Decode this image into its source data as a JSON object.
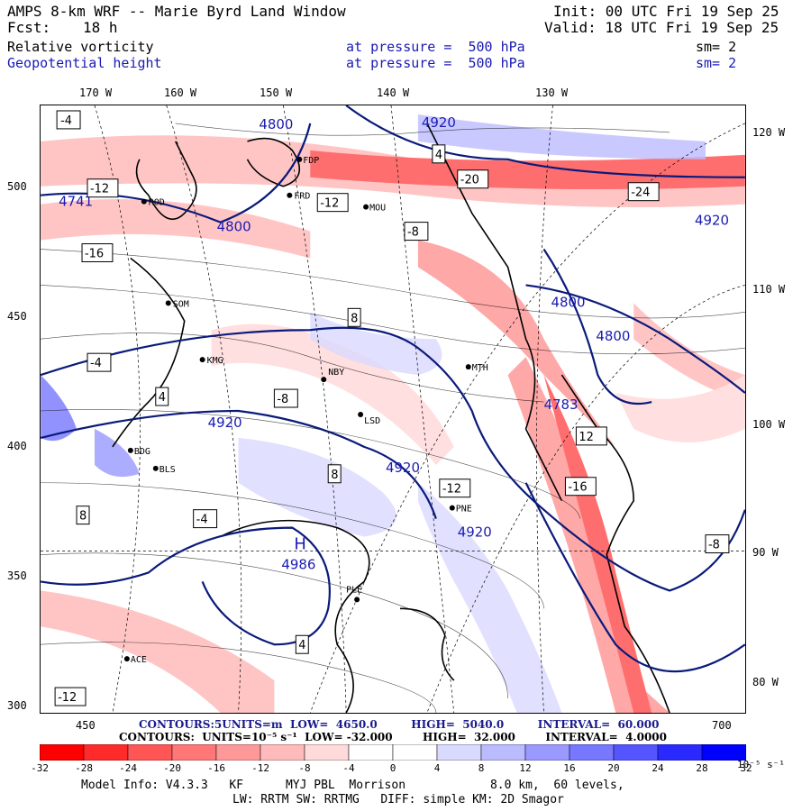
{
  "header": {
    "title": "AMPS 8-km WRF -- Marie Byrd Land Window",
    "init": "Init: 00 UTC Fri 19 Sep 25",
    "fcst_label": "Fcst:",
    "fcst_value": "18 h",
    "valid": "Valid: 18 UTC Fri 19 Sep 25"
  },
  "fields": [
    {
      "name": "Relative vorticity",
      "level": "at pressure =  500 hPa",
      "sm": "sm= 2",
      "color": "#000000"
    },
    {
      "name": "Geopotential height",
      "level": "at pressure =  500 hPa",
      "sm": "sm= 2",
      "color": "#1a1ab4"
    }
  ],
  "axes": {
    "lon_top": [
      "170 W",
      "160 W",
      "150 W",
      "140 W",
      "130 W"
    ],
    "lat_right": [
      "120 W",
      "110 W",
      "100 W",
      "90 W",
      "80 W"
    ],
    "y_left": [
      "500",
      "450",
      "400",
      "350",
      "300"
    ],
    "x_bottom": [
      "450",
      "700"
    ]
  },
  "stations": [
    "FDP",
    "FRD",
    "MOU",
    "ROD",
    "SOM",
    "KMG",
    "NBY",
    "MTH",
    "LSD",
    "BDG",
    "BLS",
    "PNE",
    "PLE",
    "ACE"
  ],
  "height_labels": [
    "4800",
    "4920",
    "4741",
    "4800",
    "4920",
    "4800",
    "4800",
    "4783",
    "4920",
    "4920",
    "4920",
    "4986",
    "H"
  ],
  "vort_labels": [
    "-4",
    "4",
    "-12",
    "-8",
    "-16",
    "-20",
    "-24",
    "-12",
    "8",
    "12",
    "-8",
    "-4",
    "4",
    "8",
    "-16",
    "-12",
    "-8",
    "4",
    "-4",
    "8",
    "-12"
  ],
  "contour_info": {
    "height": "CONTOURS:5UNITS=m  LOW=  4650.0         HIGH=  5040.0         INTERVAL=  60.000",
    "vort": "CONTOURS:  UNITS=10⁻⁵ s⁻¹  LOW= -32.000        HIGH=  32.000        INTERVAL=  4.0000"
  },
  "colorbar": {
    "labels": [
      "-32",
      "-28",
      "-24",
      "-20",
      "-16",
      "-12",
      "-8",
      "-4",
      "0",
      "4",
      "8",
      "12",
      "16",
      "20",
      "24",
      "28",
      "32"
    ],
    "unit": "10⁻⁵ s⁻¹",
    "colors": [
      "#ff0000",
      "#ff2a2a",
      "#ff5555",
      "#ff7777",
      "#ff9999",
      "#ffbbbb",
      "#ffdada",
      "#ffffff",
      "#ffffff",
      "#dadaff",
      "#bbbbff",
      "#9999ff",
      "#7777ff",
      "#5555ff",
      "#2a2aff",
      "#0000ff"
    ]
  },
  "footer": {
    "line1": "Model Info: V4.3.3   KF      MYJ PBL  Morrison            8.0 km,  60 levels,",
    "line2": "LW: RRTM SW: RRTMG   DIFF: simple KM: 2D Smagor"
  }
}
